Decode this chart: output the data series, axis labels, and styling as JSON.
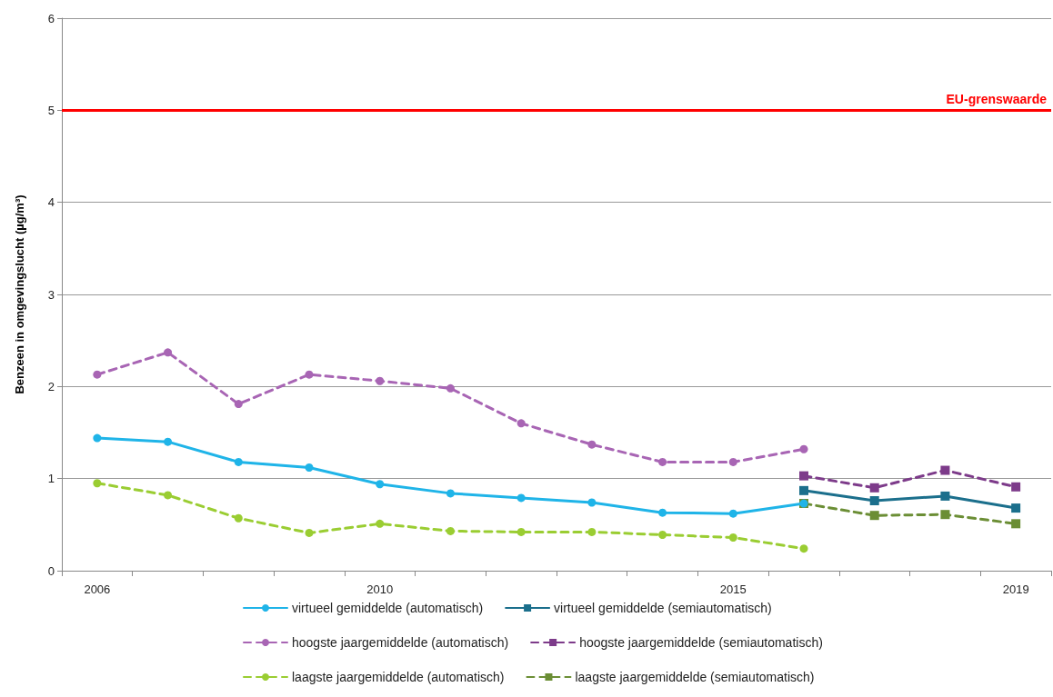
{
  "chart_data": {
    "type": "line",
    "ylabel": "Benzeen in omgevingslucht (µg/m³)",
    "categories": [
      "2006",
      null,
      null,
      null,
      "2010",
      null,
      null,
      null,
      null,
      "2015",
      null,
      null,
      null,
      "2019"
    ],
    "ylim": [
      0,
      6
    ],
    "yticks": [
      0,
      1,
      2,
      3,
      4,
      5,
      6
    ],
    "grid": "y",
    "legend": "bottom",
    "ref_lines": [
      {
        "axis": "y",
        "value": 5,
        "label": "EU-grenswaarde",
        "color": "#ff0000"
      }
    ],
    "series": [
      {
        "name": "virtueel gemiddelde (automatisch)",
        "color": "#1fb4e8",
        "marker": "circle",
        "line_style": "solid",
        "values": [
          1.44,
          1.4,
          1.18,
          1.12,
          0.94,
          0.84,
          0.79,
          0.74,
          0.63,
          0.62,
          0.73,
          null,
          null,
          null
        ]
      },
      {
        "name": "virtueel gemiddelde (semiautomatisch)",
        "color": "#1b6f8c",
        "marker": "square",
        "line_style": "solid",
        "values": [
          null,
          null,
          null,
          null,
          null,
          null,
          null,
          null,
          null,
          null,
          0.87,
          0.76,
          0.81,
          0.68
        ]
      },
      {
        "name": "hoogste jaargemiddelde (automatisch)",
        "color": "#a865b4",
        "marker": "circle",
        "line_style": "dashed",
        "values": [
          2.13,
          2.37,
          1.81,
          2.13,
          2.06,
          1.98,
          1.6,
          1.37,
          1.18,
          1.18,
          1.32,
          null,
          null,
          null
        ]
      },
      {
        "name": "hoogste jaargemiddelde (semiautomatisch)",
        "color": "#7d3b8a",
        "marker": "square",
        "line_style": "dashed",
        "values": [
          null,
          null,
          null,
          null,
          null,
          null,
          null,
          null,
          null,
          null,
          1.03,
          0.9,
          1.09,
          0.91
        ]
      },
      {
        "name": "laagste jaargemiddelde (automatisch)",
        "color": "#9acd32",
        "marker": "circle",
        "line_style": "dashed",
        "values": [
          0.95,
          0.82,
          0.57,
          0.41,
          0.51,
          0.43,
          0.42,
          0.42,
          0.39,
          0.36,
          0.24,
          null,
          null,
          null
        ]
      },
      {
        "name": "laagste jaargemiddelde (semiautomatisch)",
        "color": "#6b8e35",
        "marker": "square",
        "line_style": "dashed",
        "values": [
          null,
          null,
          null,
          null,
          null,
          null,
          null,
          null,
          null,
          null,
          0.73,
          0.6,
          0.61,
          0.51
        ]
      }
    ]
  }
}
